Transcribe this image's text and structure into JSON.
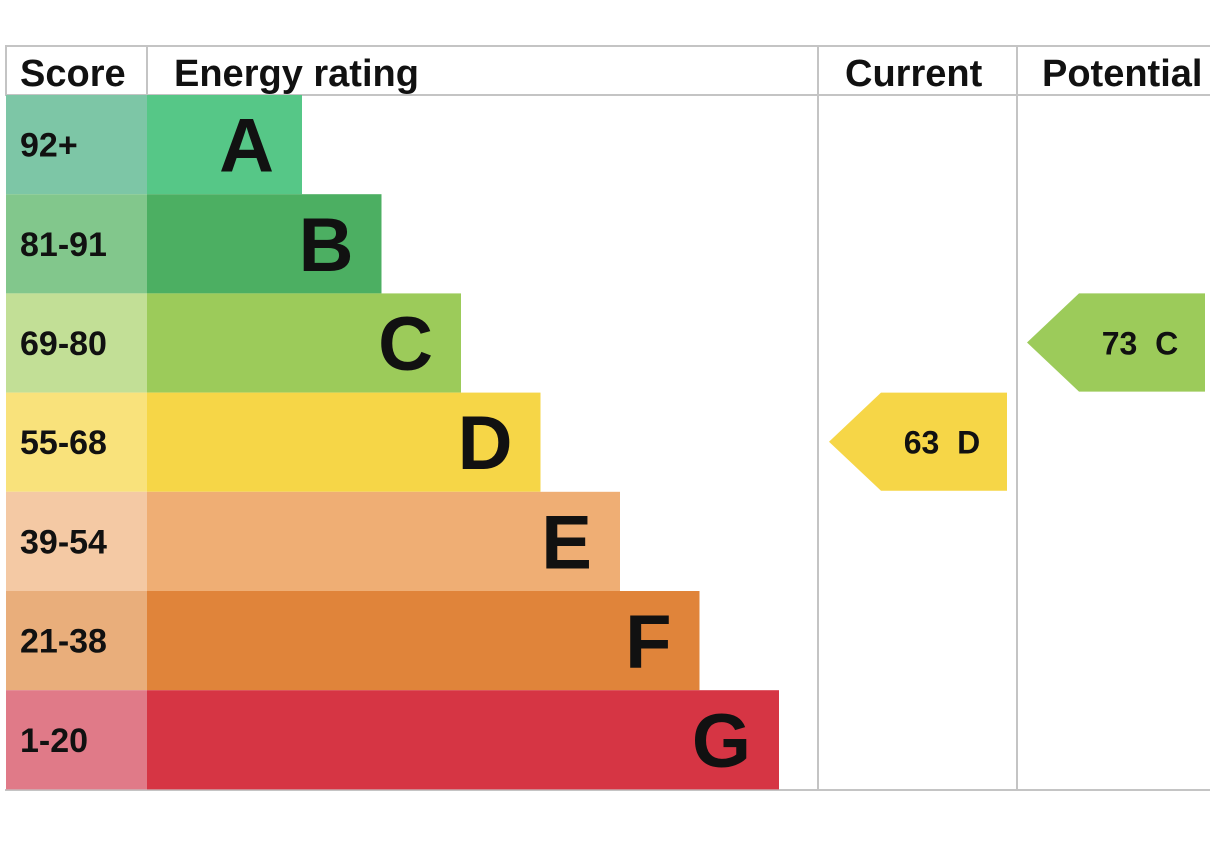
{
  "chart_data": {
    "type": "bar",
    "headers": {
      "score": "Score",
      "energy_rating": "Energy rating",
      "current": "Current",
      "potential": "Potential"
    },
    "bands": [
      {
        "letter": "A",
        "range": "92+",
        "color": "#56c787",
        "score_color": "#7dc6a6"
      },
      {
        "letter": "B",
        "range": "81-91",
        "color": "#4caf62",
        "score_color": "#82c78c"
      },
      {
        "letter": "C",
        "range": "69-80",
        "color": "#9ccb5a",
        "score_color": "#c2df96"
      },
      {
        "letter": "D",
        "range": "55-68",
        "color": "#f6d647",
        "score_color": "#f9e27b"
      },
      {
        "letter": "E",
        "range": "39-54",
        "color": "#efae74",
        "score_color": "#f4c9a4"
      },
      {
        "letter": "F",
        "range": "21-38",
        "color": "#e0843a",
        "score_color": "#e9ae7b"
      },
      {
        "letter": "G",
        "range": "1-20",
        "color": "#d63544",
        "score_color": "#e07a88"
      }
    ],
    "current": {
      "value": 63,
      "letter": "D",
      "label": "63  D",
      "color": "#f6d647"
    },
    "potential": {
      "value": 73,
      "letter": "C",
      "label": "73  C",
      "color": "#9ccb5a"
    }
  }
}
